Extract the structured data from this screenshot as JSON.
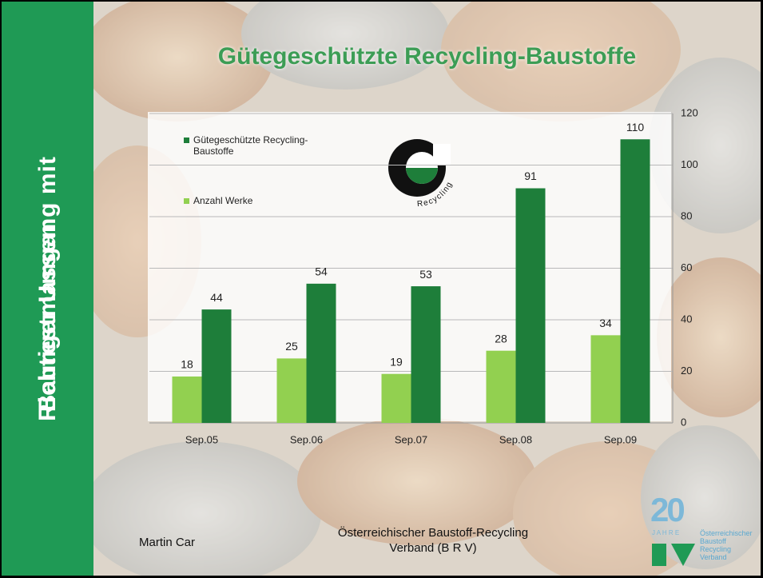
{
  "side_title": [
    "Richtiger Umgang mit",
    "Baurestmassen"
  ],
  "chart_data": {
    "type": "bar",
    "title": "Gütegeschützte Recycling-Baustoffe",
    "categories": [
      "Sep.05",
      "Sep.06",
      "Sep.07",
      "Sep.08",
      "Sep.09"
    ],
    "series": [
      {
        "name": "Gütegeschützte Recycling-Baustoffe",
        "color": "#1e7e3a",
        "values": [
          44,
          54,
          53,
          91,
          110
        ]
      },
      {
        "name": "Anzahl Werke",
        "color": "#92d050",
        "values": [
          18,
          25,
          19,
          28,
          34
        ]
      }
    ],
    "ylim": [
      0,
      120
    ],
    "yticks": [
      0,
      20,
      40,
      60,
      80,
      100,
      120
    ],
    "grid": true,
    "legend": "upper-left",
    "logo_text": "Recycling"
  },
  "footer": {
    "author": "Martin Car",
    "organization": [
      "Österreichischer Baustoff-Recycling",
      "Verband (B R V)"
    ]
  },
  "brv_logo": {
    "number": "20",
    "years": "J A H R E",
    "lines": [
      "Österreichischer",
      "Baustoff",
      "Recycling",
      "Verband"
    ]
  }
}
